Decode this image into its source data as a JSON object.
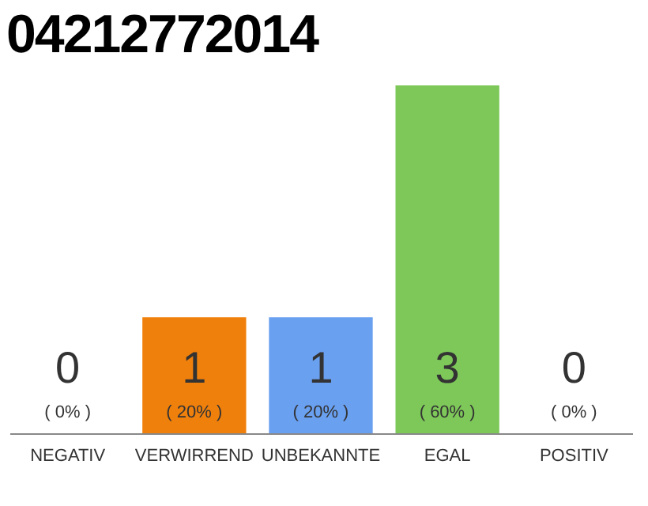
{
  "chart_data": {
    "type": "bar",
    "title": "04212772014",
    "categories": [
      "NEGATIV",
      "VERWIRREND",
      "UNBEKANNTE",
      "EGAL",
      "POSITIV"
    ],
    "values": [
      0,
      1,
      1,
      3,
      0
    ],
    "colors": [
      "#cccccc",
      "#f0800c",
      "#6aa0f0",
      "#7ec85a",
      "#cccccc"
    ],
    "data_labels": true,
    "annotations": [
      "( 0% )",
      "( 20% )",
      "( 20% )",
      "( 60% )",
      "( 0% )"
    ],
    "tick_labels": "x"
  }
}
